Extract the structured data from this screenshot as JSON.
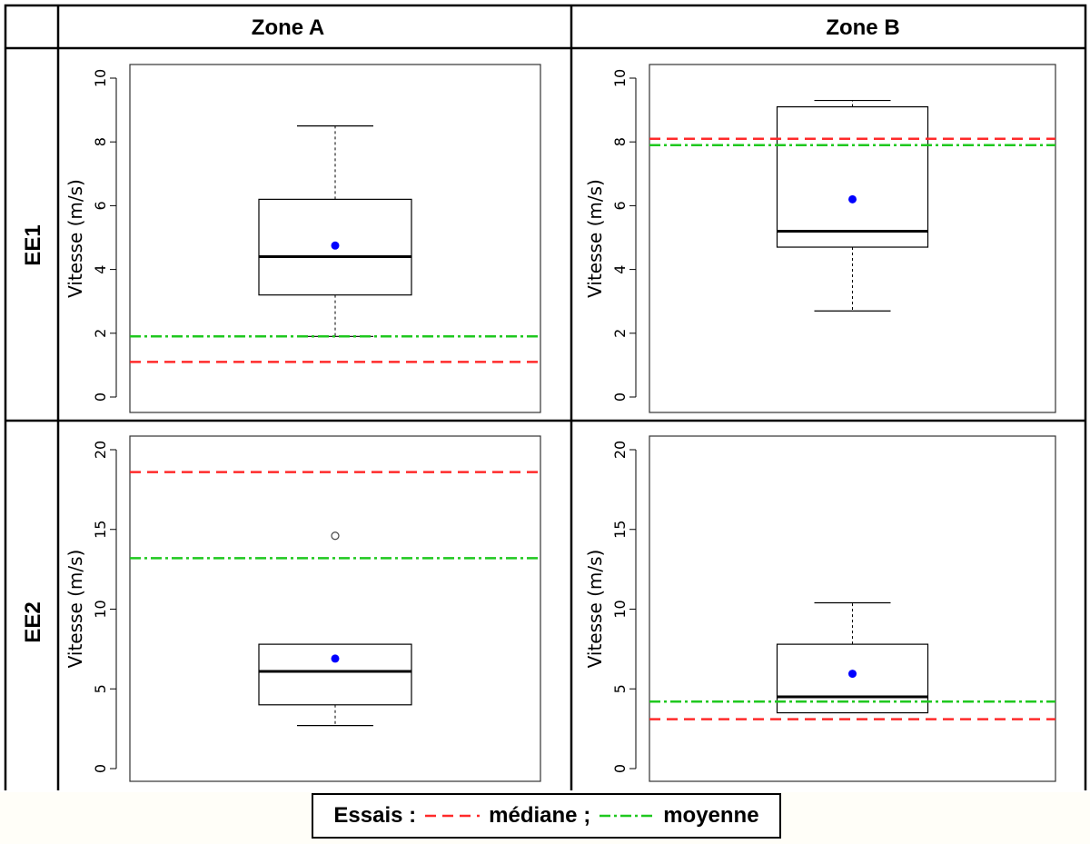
{
  "headers": {
    "columns": [
      "Zone A",
      "Zone B"
    ],
    "rows": [
      "EE1",
      "EE2"
    ]
  },
  "colors": {
    "mediane": "#ff2a2a",
    "moyenne": "#1fc81f",
    "mean_point": "#0000ff",
    "box": "#000000"
  },
  "legend": {
    "prefix": "Essais :",
    "mediane_label": "médiane ;",
    "moyenne_label": "moyenne"
  },
  "chart_data": [
    {
      "type": "boxplot",
      "row": "EE1",
      "column": "Zone A",
      "ylabel": "Vitesse (m/s)",
      "ylim": [
        0,
        10
      ],
      "yticks": [
        "0",
        "2",
        "4",
        "6",
        "8",
        "10"
      ],
      "box": {
        "whisker_low": 1.9,
        "q1": 3.2,
        "median": 4.4,
        "q3": 6.2,
        "whisker_high": 8.5,
        "mean": 4.75,
        "outliers": []
      },
      "reference_lines": {
        "mediane": 1.1,
        "moyenne": 1.9
      }
    },
    {
      "type": "boxplot",
      "row": "EE1",
      "column": "Zone B",
      "ylabel": "Vitesse (m/s)",
      "ylim": [
        0,
        10
      ],
      "yticks": [
        "0",
        "2",
        "4",
        "6",
        "8",
        "10"
      ],
      "box": {
        "whisker_low": 2.7,
        "q1": 4.7,
        "median": 5.2,
        "q3": 9.1,
        "whisker_high": 9.3,
        "mean": 6.2,
        "outliers": []
      },
      "reference_lines": {
        "mediane": 8.1,
        "moyenne": 7.9
      }
    },
    {
      "type": "boxplot",
      "row": "EE2",
      "column": "Zone A",
      "ylabel": "Vitesse (m/s)",
      "ylim": [
        0,
        20
      ],
      "yticks": [
        "0",
        "5",
        "10",
        "15",
        "20"
      ],
      "box": {
        "whisker_low": 2.7,
        "q1": 4.0,
        "median": 6.1,
        "q3": 7.8,
        "whisker_high": 7.8,
        "mean": 6.9,
        "outliers": [
          14.6
        ]
      },
      "reference_lines": {
        "mediane": 18.6,
        "moyenne": 13.2
      }
    },
    {
      "type": "boxplot",
      "row": "EE2",
      "column": "Zone B",
      "ylabel": "Vitesse (m/s)",
      "ylim": [
        0,
        20
      ],
      "yticks": [
        "0",
        "5",
        "10",
        "15",
        "20"
      ],
      "box": {
        "whisker_low": 3.5,
        "q1": 3.5,
        "median": 4.5,
        "q3": 7.8,
        "whisker_high": 10.4,
        "mean": 5.95,
        "outliers": []
      },
      "reference_lines": {
        "mediane": 3.1,
        "moyenne": 4.2
      }
    }
  ]
}
